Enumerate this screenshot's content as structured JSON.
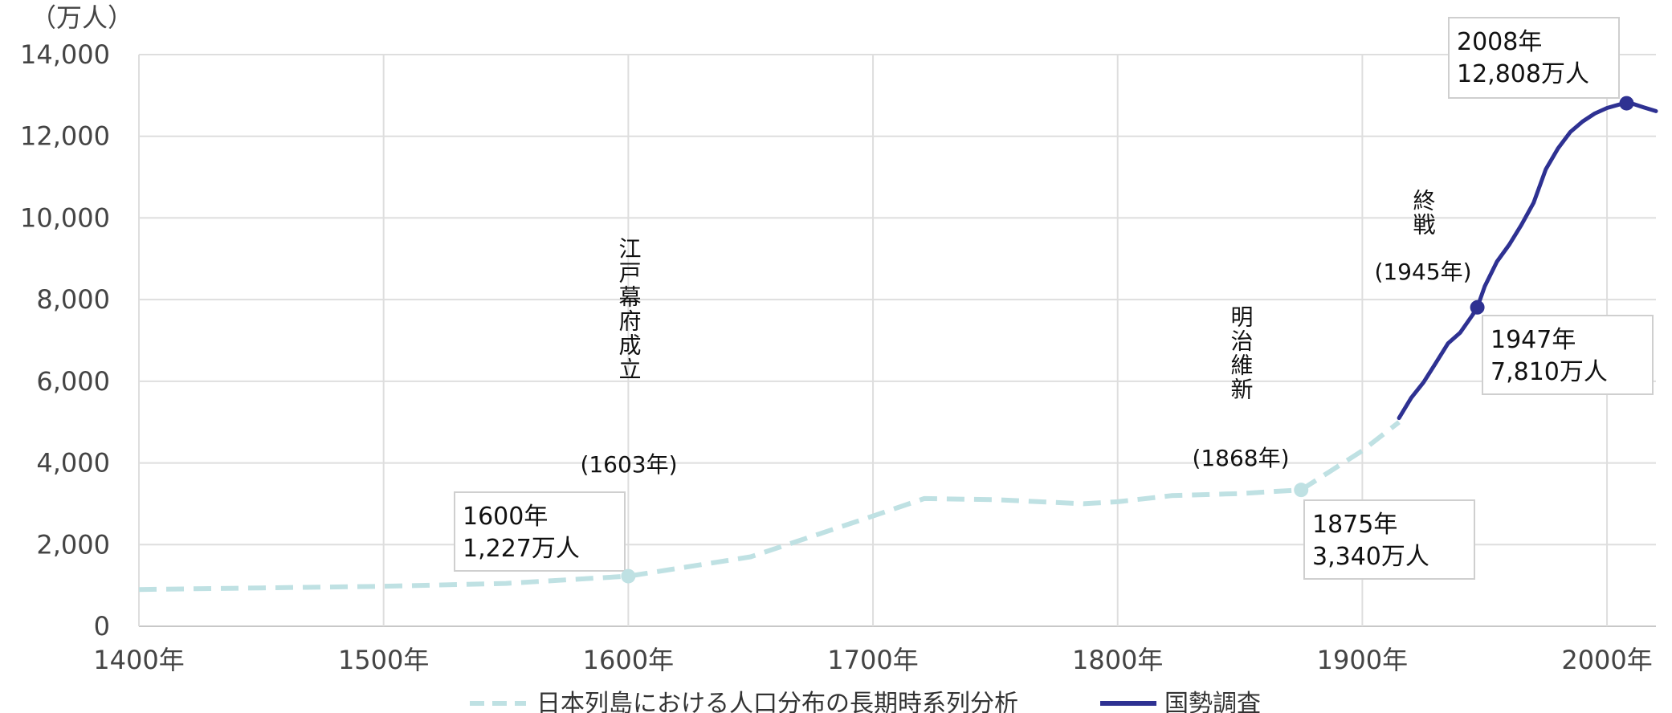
{
  "chart_data": {
    "type": "line",
    "ylabel": "（万人）",
    "xlim": [
      1400,
      2020
    ],
    "ylim": [
      0,
      14000
    ],
    "y_ticks": [
      "0",
      "2,000",
      "4,000",
      "6,000",
      "8,000",
      "10,000",
      "12,000",
      "14,000"
    ],
    "x_ticks": [
      "1400年",
      "1500年",
      "1600年",
      "1700年",
      "1800年",
      "1900年",
      "2000年"
    ],
    "grid": true,
    "legend_position": "bottom",
    "series": [
      {
        "name": "日本列島における人口分布の長期時系列分析",
        "color": "#bfe1e3",
        "style": "dashed",
        "x": [
          1400,
          1450,
          1500,
          1550,
          1600,
          1650,
          1700,
          1721,
          1750,
          1786,
          1800,
          1822,
          1850,
          1875,
          1900,
          1915
        ],
        "y": [
          900,
          940,
          980,
          1050,
          1227,
          1700,
          2700,
          3128,
          3100,
          3000,
          3050,
          3200,
          3250,
          3340,
          4300,
          5000
        ]
      },
      {
        "name": "国勢調査",
        "color": "#2e3192",
        "style": "solid",
        "x": [
          1915,
          1920,
          1925,
          1930,
          1935,
          1940,
          1945,
          1947,
          1950,
          1955,
          1960,
          1965,
          1970,
          1975,
          1980,
          1985,
          1990,
          1995,
          2000,
          2005,
          2008,
          2010,
          2015,
          2020
        ],
        "y": [
          5100,
          5596,
          5974,
          6445,
          6925,
          7193,
          7620,
          7810,
          8320,
          8928,
          9342,
          9828,
          10372,
          11194,
          11706,
          12105,
          12361,
          12557,
          12693,
          12777,
          12808,
          12806,
          12709,
          12615
        ]
      }
    ],
    "highlight_points": [
      {
        "series": 0,
        "x": 1600,
        "y": 1227,
        "label_year": "1600年",
        "label_pop": "1,227万人"
      },
      {
        "series": 0,
        "x": 1875,
        "y": 3340,
        "label_year": "1875年",
        "label_pop": "3,340万人"
      },
      {
        "series": 1,
        "x": 1947,
        "y": 7810,
        "label_year": "1947年",
        "label_pop": "7,810万人"
      },
      {
        "series": 1,
        "x": 2008,
        "y": 12808,
        "label_year": "2008年",
        "label_pop": "12,808万人"
      }
    ],
    "events": [
      {
        "text": "江戸幕府成立",
        "year": "(1603年)"
      },
      {
        "text": "明治維新",
        "year": "(1868年)"
      },
      {
        "text": "終戦",
        "year": "(1945年)"
      }
    ]
  }
}
